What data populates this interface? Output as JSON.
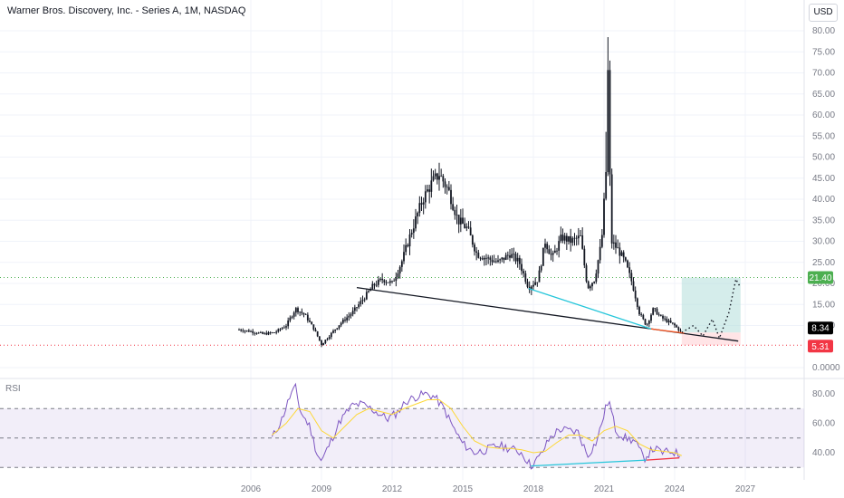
{
  "header": {
    "title": "Warner Bros. Discovery, Inc. - Series A, 1M, NASDAQ"
  },
  "currency_button": "USD",
  "rsi_label": "RSI",
  "chart_data": [
    {
      "type": "candlestick",
      "title": "Warner Bros. Discovery, Inc. - Series A, 1M, NASDAQ",
      "ylim": [
        0,
        80
      ],
      "y_ticks": [
        "80.00",
        "75.00",
        "70.00",
        "65.00",
        "60.00",
        "55.00",
        "50.00",
        "45.00",
        "40.00",
        "35.00",
        "30.00",
        "25.00",
        "20.00",
        "15.00",
        "10.00",
        "0.0000"
      ],
      "x_ticks": [
        "2006",
        "2009",
        "2012",
        "2015",
        "2018",
        "2021",
        "2024",
        "2027"
      ],
      "price_labels": [
        {
          "value": 21.4,
          "text": "21.40",
          "color": "#4caf50"
        },
        {
          "value": 8.34,
          "text": "8.34",
          "color": "#000000"
        },
        {
          "value": 5.31,
          "text": "5.31",
          "color": "#f23645"
        }
      ],
      "series": [
        {
          "values": [
            [
              2005.5,
              9.0
            ],
            [
              2006.0,
              8.6
            ],
            [
              2006.5,
              8.0
            ],
            [
              2007.0,
              8.3
            ],
            [
              2007.5,
              10.0
            ],
            [
              2007.9,
              14.0
            ],
            [
              2008.3,
              12.5
            ],
            [
              2008.7,
              9.0
            ],
            [
              2009.0,
              5.5
            ],
            [
              2009.4,
              8.0
            ],
            [
              2009.8,
              10.5
            ],
            [
              2010.3,
              13.0
            ],
            [
              2010.8,
              16.5
            ],
            [
              2011.2,
              19.5
            ],
            [
              2011.6,
              21.0
            ],
            [
              2012.0,
              20.0
            ],
            [
              2012.4,
              25.0
            ],
            [
              2012.8,
              32.0
            ],
            [
              2013.3,
              40.0
            ],
            [
              2013.7,
              44.0
            ],
            [
              2014.0,
              46.0
            ],
            [
              2014.4,
              42.0
            ],
            [
              2014.8,
              35.0
            ],
            [
              2015.2,
              33.0
            ],
            [
              2015.6,
              27.0
            ],
            [
              2016.0,
              26.0
            ],
            [
              2016.5,
              25.0
            ],
            [
              2017.0,
              27.0
            ],
            [
              2017.4,
              25.0
            ],
            [
              2017.8,
              19.0
            ],
            [
              2018.2,
              21.0
            ],
            [
              2018.5,
              30.0
            ],
            [
              2018.8,
              26.0
            ],
            [
              2019.2,
              31.0
            ],
            [
              2019.6,
              30.0
            ],
            [
              2020.0,
              31.0
            ],
            [
              2020.3,
              19.0
            ],
            [
              2020.6,
              21.0
            ],
            [
              2020.9,
              30.0
            ],
            [
              2021.1,
              48.0
            ],
            [
              2021.15,
              75.0
            ],
            [
              2021.3,
              30.0
            ],
            [
              2021.6,
              28.0
            ],
            [
              2021.9,
              25.0
            ],
            [
              2022.2,
              20.0
            ],
            [
              2022.5,
              13.0
            ],
            [
              2022.8,
              10.0
            ],
            [
              2023.1,
              14.0
            ],
            [
              2023.4,
              12.0
            ],
            [
              2023.7,
              11.0
            ],
            [
              2024.0,
              10.0
            ],
            [
              2024.3,
              8.34
            ]
          ]
        },
        {
          "name": "projection",
          "values": [
            [
              2024.3,
              8.34
            ],
            [
              2024.8,
              10.0
            ],
            [
              2025.2,
              7.5
            ],
            [
              2025.6,
              11.5
            ],
            [
              2025.9,
              7.0
            ],
            [
              2026.3,
              13.0
            ],
            [
              2026.6,
              21.0
            ],
            [
              2026.8,
              19.0
            ]
          ]
        }
      ],
      "annotations": [
        {
          "type": "trendline",
          "color": "#131722",
          "from": [
            2010.5,
            19.0
          ],
          "to": [
            2026.7,
            6.3
          ]
        },
        {
          "type": "trendline",
          "color": "#26c6da",
          "from": [
            2017.8,
            18.8
          ],
          "to": [
            2023.0,
            9.2
          ]
        },
        {
          "type": "trendline",
          "color": "#ff5722",
          "from": [
            2023.0,
            9.2
          ],
          "to": [
            2024.4,
            8.2
          ]
        },
        {
          "type": "zone",
          "color": "#b2dfdb",
          "x": [
            2024.3,
            2026.8
          ],
          "y": [
            8.34,
            21.4
          ]
        },
        {
          "type": "zone",
          "color": "#ffcdd2",
          "x": [
            2024.3,
            2026.8
          ],
          "y": [
            5.31,
            8.34
          ]
        },
        {
          "type": "hline",
          "color": "#4caf50",
          "value": 21.4
        },
        {
          "type": "hline",
          "color": "#f23645",
          "value": 5.31
        }
      ]
    },
    {
      "type": "line",
      "title": "RSI",
      "ylim": [
        27,
        87
      ],
      "y_ticks": [
        "80.00",
        "60.00",
        "40.00"
      ],
      "band": [
        30,
        70
      ],
      "series": [
        {
          "values": [
            [
              2006.9,
              50
            ],
            [
              2007.3,
              62
            ],
            [
              2007.7,
              80
            ],
            [
              2007.9,
              84
            ],
            [
              2008.1,
              68
            ],
            [
              2008.5,
              58
            ],
            [
              2008.8,
              40
            ],
            [
              2009.0,
              34
            ],
            [
              2009.4,
              48
            ],
            [
              2009.8,
              62
            ],
            [
              2010.3,
              72
            ],
            [
              2010.7,
              73
            ],
            [
              2011.1,
              70
            ],
            [
              2011.5,
              66
            ],
            [
              2011.8,
              63
            ],
            [
              2012.2,
              67
            ],
            [
              2012.6,
              75
            ],
            [
              2013.0,
              78
            ],
            [
              2013.4,
              80
            ],
            [
              2013.8,
              78
            ],
            [
              2014.2,
              70
            ],
            [
              2014.6,
              57
            ],
            [
              2015.0,
              46
            ],
            [
              2015.5,
              40
            ],
            [
              2016.0,
              42
            ],
            [
              2016.5,
              45
            ],
            [
              2017.0,
              43
            ],
            [
              2017.5,
              40
            ],
            [
              2017.9,
              31
            ],
            [
              2018.3,
              38
            ],
            [
              2018.7,
              50
            ],
            [
              2019.1,
              56
            ],
            [
              2019.5,
              55
            ],
            [
              2019.9,
              54
            ],
            [
              2020.3,
              38
            ],
            [
              2020.7,
              48
            ],
            [
              2021.1,
              72
            ],
            [
              2021.2,
              76
            ],
            [
              2021.5,
              55
            ],
            [
              2021.9,
              50
            ],
            [
              2022.3,
              48
            ],
            [
              2022.7,
              36
            ],
            [
              2023.1,
              43
            ],
            [
              2023.5,
              40
            ],
            [
              2023.9,
              41
            ],
            [
              2024.3,
              38
            ]
          ]
        },
        {
          "color": "#fdd835",
          "values": [
            [
              2006.9,
              52
            ],
            [
              2007.5,
              60
            ],
            [
              2008.0,
              70
            ],
            [
              2008.5,
              68
            ],
            [
              2009.0,
              55
            ],
            [
              2009.5,
              50
            ],
            [
              2010.0,
              58
            ],
            [
              2010.5,
              66
            ],
            [
              2011.0,
              70
            ],
            [
              2011.5,
              68
            ],
            [
              2012.0,
              66
            ],
            [
              2012.5,
              70
            ],
            [
              2013.0,
              73
            ],
            [
              2013.5,
              76
            ],
            [
              2014.0,
              76
            ],
            [
              2014.5,
              70
            ],
            [
              2015.0,
              58
            ],
            [
              2015.5,
              48
            ],
            [
              2016.0,
              44
            ],
            [
              2016.5,
              43
            ],
            [
              2017.0,
              43
            ],
            [
              2017.5,
              42
            ],
            [
              2018.0,
              40
            ],
            [
              2018.5,
              41
            ],
            [
              2019.0,
              47
            ],
            [
              2019.5,
              52
            ],
            [
              2020.0,
              52
            ],
            [
              2020.5,
              48
            ],
            [
              2021.0,
              55
            ],
            [
              2021.5,
              58
            ],
            [
              2022.0,
              55
            ],
            [
              2022.5,
              46
            ],
            [
              2023.0,
              42
            ],
            [
              2023.5,
              41
            ],
            [
              2024.0,
              40
            ],
            [
              2024.3,
              38
            ]
          ]
        }
      ],
      "annotations": [
        {
          "type": "trendline",
          "color": "#26c6da",
          "from": [
            2017.9,
            31
          ],
          "to": [
            2022.8,
            35
          ]
        },
        {
          "type": "trendline",
          "color": "#f23645",
          "from": [
            2022.8,
            35
          ],
          "to": [
            2024.2,
            36.5
          ]
        }
      ]
    }
  ]
}
